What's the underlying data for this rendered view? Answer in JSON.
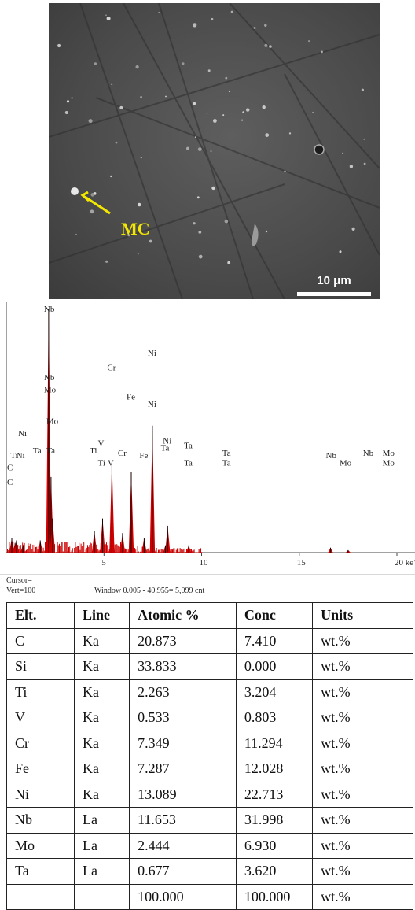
{
  "micrograph": {
    "label": "MC",
    "scale_bar": "10 μm"
  },
  "chart_data": {
    "type": "bar",
    "xlabel": "",
    "ylabel": "",
    "xlim": [
      0,
      20
    ],
    "x_unit_label": "keV",
    "xticks": [
      "5",
      "10",
      "15",
      "20 keV"
    ],
    "peaks": [
      {
        "x": 0.28,
        "y": 6
      },
      {
        "x": 0.45,
        "y": 4
      },
      {
        "x": 0.52,
        "y": 5
      },
      {
        "x": 0.85,
        "y": 3
      },
      {
        "x": 1.74,
        "y": 5
      },
      {
        "x": 1.75,
        "y": 4
      },
      {
        "x": 2.17,
        "y": 100
      },
      {
        "x": 2.29,
        "y": 31
      },
      {
        "x": 2.37,
        "y": 14
      },
      {
        "x": 4.51,
        "y": 9
      },
      {
        "x": 4.93,
        "y": 14
      },
      {
        "x": 5.43,
        "y": 13
      },
      {
        "x": 5.41,
        "y": 37
      },
      {
        "x": 5.95,
        "y": 8
      },
      {
        "x": 6.4,
        "y": 33
      },
      {
        "x": 7.06,
        "y": 6
      },
      {
        "x": 7.48,
        "y": 52
      },
      {
        "x": 8.26,
        "y": 11
      },
      {
        "x": 8.15,
        "y": 3
      },
      {
        "x": 9.34,
        "y": 3
      },
      {
        "x": 16.6,
        "y": 2
      },
      {
        "x": 17.5,
        "y": 1
      }
    ],
    "peak_labels": [
      {
        "text": "Nb",
        "x": 2.17,
        "level": 100
      },
      {
        "text": "Nb",
        "x": 2.17,
        "level": 72
      },
      {
        "text": "Mo",
        "x": 2.17,
        "level": 67
      },
      {
        "text": "Mo",
        "x": 2.29,
        "level": 54
      },
      {
        "text": "Ni",
        "x": 0.85,
        "level": 49
      },
      {
        "text": "Ti",
        "x": 0.45,
        "level": 40
      },
      {
        "text": "Ni",
        "x": 0.75,
        "level": 40
      },
      {
        "text": "C",
        "x": 0.28,
        "level": 35
      },
      {
        "text": "C",
        "x": 0.28,
        "level": 29
      },
      {
        "text": "Ta",
        "x": 1.6,
        "level": 42
      },
      {
        "text": "Ta",
        "x": 2.3,
        "level": 42
      },
      {
        "text": "Ti",
        "x": 4.51,
        "level": 42
      },
      {
        "text": "V",
        "x": 4.93,
        "level": 45
      },
      {
        "text": "Ti",
        "x": 4.93,
        "level": 37
      },
      {
        "text": "V",
        "x": 5.43,
        "level": 37
      },
      {
        "text": "Cr",
        "x": 5.41,
        "level": 76
      },
      {
        "text": "Cr",
        "x": 5.95,
        "level": 41
      },
      {
        "text": "Fe",
        "x": 6.4,
        "level": 64
      },
      {
        "text": "Fe",
        "x": 7.06,
        "level": 40
      },
      {
        "text": "Ni",
        "x": 7.48,
        "level": 82
      },
      {
        "text": "Ni",
        "x": 7.48,
        "level": 61
      },
      {
        "text": "Ni",
        "x": 8.26,
        "level": 46
      },
      {
        "text": "Ta",
        "x": 8.15,
        "level": 43
      },
      {
        "text": "Ta",
        "x": 9.34,
        "level": 44
      },
      {
        "text": "Ta",
        "x": 9.34,
        "level": 37
      },
      {
        "text": "Ta",
        "x": 11.3,
        "level": 41
      },
      {
        "text": "Ta",
        "x": 11.3,
        "level": 37
      },
      {
        "text": "Nb",
        "x": 16.6,
        "level": 40
      },
      {
        "text": "Mo",
        "x": 17.3,
        "level": 37
      },
      {
        "text": "Nb",
        "x": 18.5,
        "level": 41
      },
      {
        "text": "Mo",
        "x": 19.5,
        "level": 41
      },
      {
        "text": "Mo",
        "x": 19.5,
        "level": 37
      }
    ],
    "footer_cursor": "Cursor=",
    "footer_vert": "Vert=100",
    "footer_window": "Window 0.005 - 40.955=  5,099 cnt"
  },
  "table": {
    "headers": [
      "Elt.",
      "Line",
      "Atomic %",
      "Conc",
      "Units"
    ],
    "rows": [
      [
        "C",
        "Ka",
        "20.873",
        "7.410",
        "wt.%"
      ],
      [
        "Si",
        "Ka",
        "33.833",
        "0.000",
        "wt.%"
      ],
      [
        "Ti",
        "Ka",
        "2.263",
        "3.204",
        "wt.%"
      ],
      [
        "V",
        "Ka",
        "0.533",
        "0.803",
        "wt.%"
      ],
      [
        "Cr",
        "Ka",
        "7.349",
        "11.294",
        "wt.%"
      ],
      [
        "Fe",
        "Ka",
        "7.287",
        "12.028",
        "wt.%"
      ],
      [
        "Ni",
        "Ka",
        "13.089",
        "22.713",
        "wt.%"
      ],
      [
        "Nb",
        "La",
        "11.653",
        "31.998",
        "wt.%"
      ],
      [
        "Mo",
        "La",
        "2.444",
        "6.930",
        "wt.%"
      ],
      [
        "Ta",
        "La",
        "0.677",
        "3.620",
        "wt.%"
      ],
      [
        "",
        "",
        "100.000",
        "100.000",
        "wt.%"
      ]
    ]
  },
  "colors": {
    "spectrum_fill": "#cc0000",
    "spectrum_peak": "#1a0000",
    "label_yellow": "#f5e800"
  }
}
